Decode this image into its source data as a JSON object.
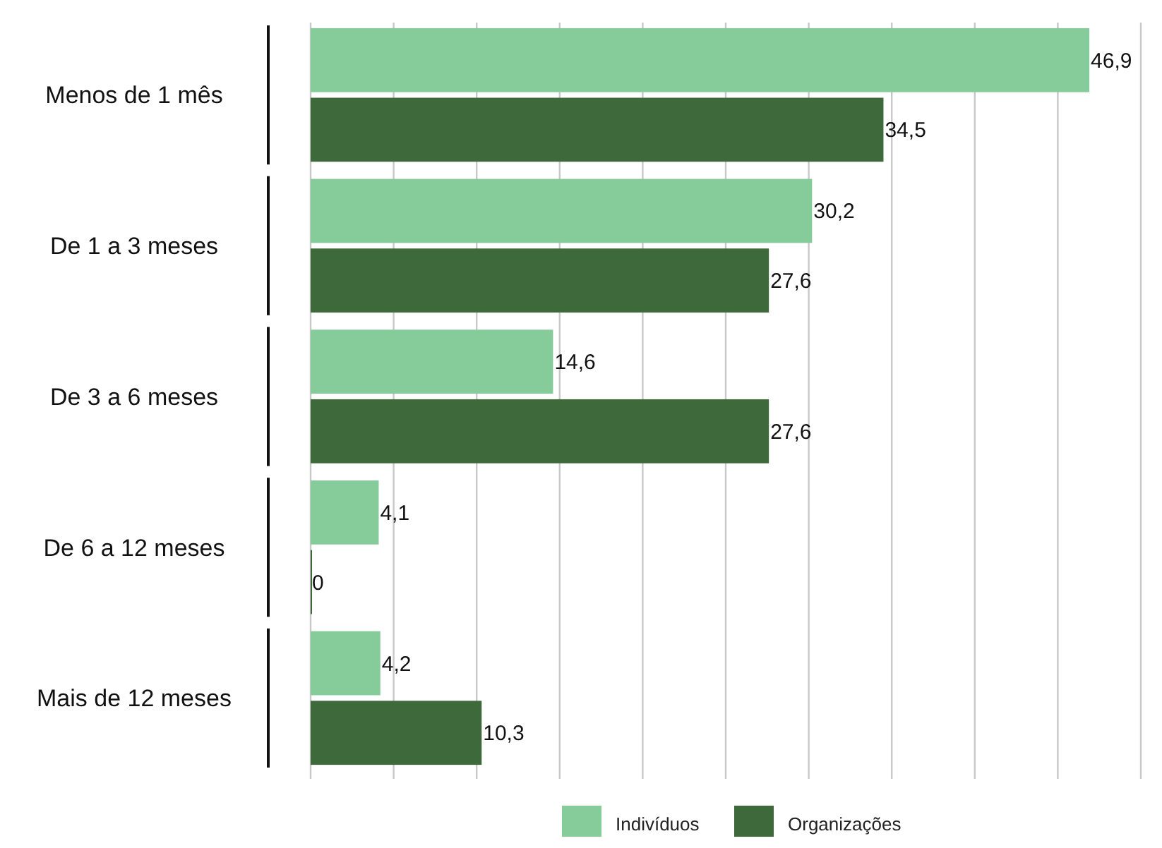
{
  "chart_data": {
    "type": "bar",
    "orientation": "horizontal",
    "categories": [
      "Menos de 1 mês",
      "De 1 a 3 meses",
      "De 3 a 6 meses",
      "De 6 a 12 meses",
      "Mais de 12 meses"
    ],
    "series": [
      {
        "name": "Indivíduos",
        "color": "#86cb9a",
        "values": [
          46.9,
          30.2,
          14.6,
          4.1,
          4.2
        ],
        "value_labels": [
          "46,9",
          "30,2",
          "14,6",
          "4,1",
          "4,2"
        ]
      },
      {
        "name": "Organizações",
        "color": "#3e6a3b",
        "values": [
          34.5,
          27.6,
          27.6,
          0,
          10.3
        ],
        "value_labels": [
          "34,5",
          "27,6",
          "27,6",
          "0",
          "10,3"
        ]
      }
    ],
    "xlim": [
      0,
      50
    ],
    "xticks": [
      {
        "value": 0,
        "label": null
      },
      {
        "value": 5,
        "label": null
      },
      {
        "value": 10,
        "label": null
      },
      {
        "value": 15,
        "label": null
      },
      {
        "value": 20,
        "label": null
      },
      {
        "value": 25,
        "label": null
      },
      {
        "value": 30,
        "label": null
      },
      {
        "value": 35,
        "label": null
      },
      {
        "value": 40,
        "label": null
      },
      {
        "value": 45,
        "label": null
      },
      {
        "value": 50,
        "label": null
      }
    ],
    "tick_labels": "y",
    "grid": "x",
    "legend": "bottom"
  }
}
